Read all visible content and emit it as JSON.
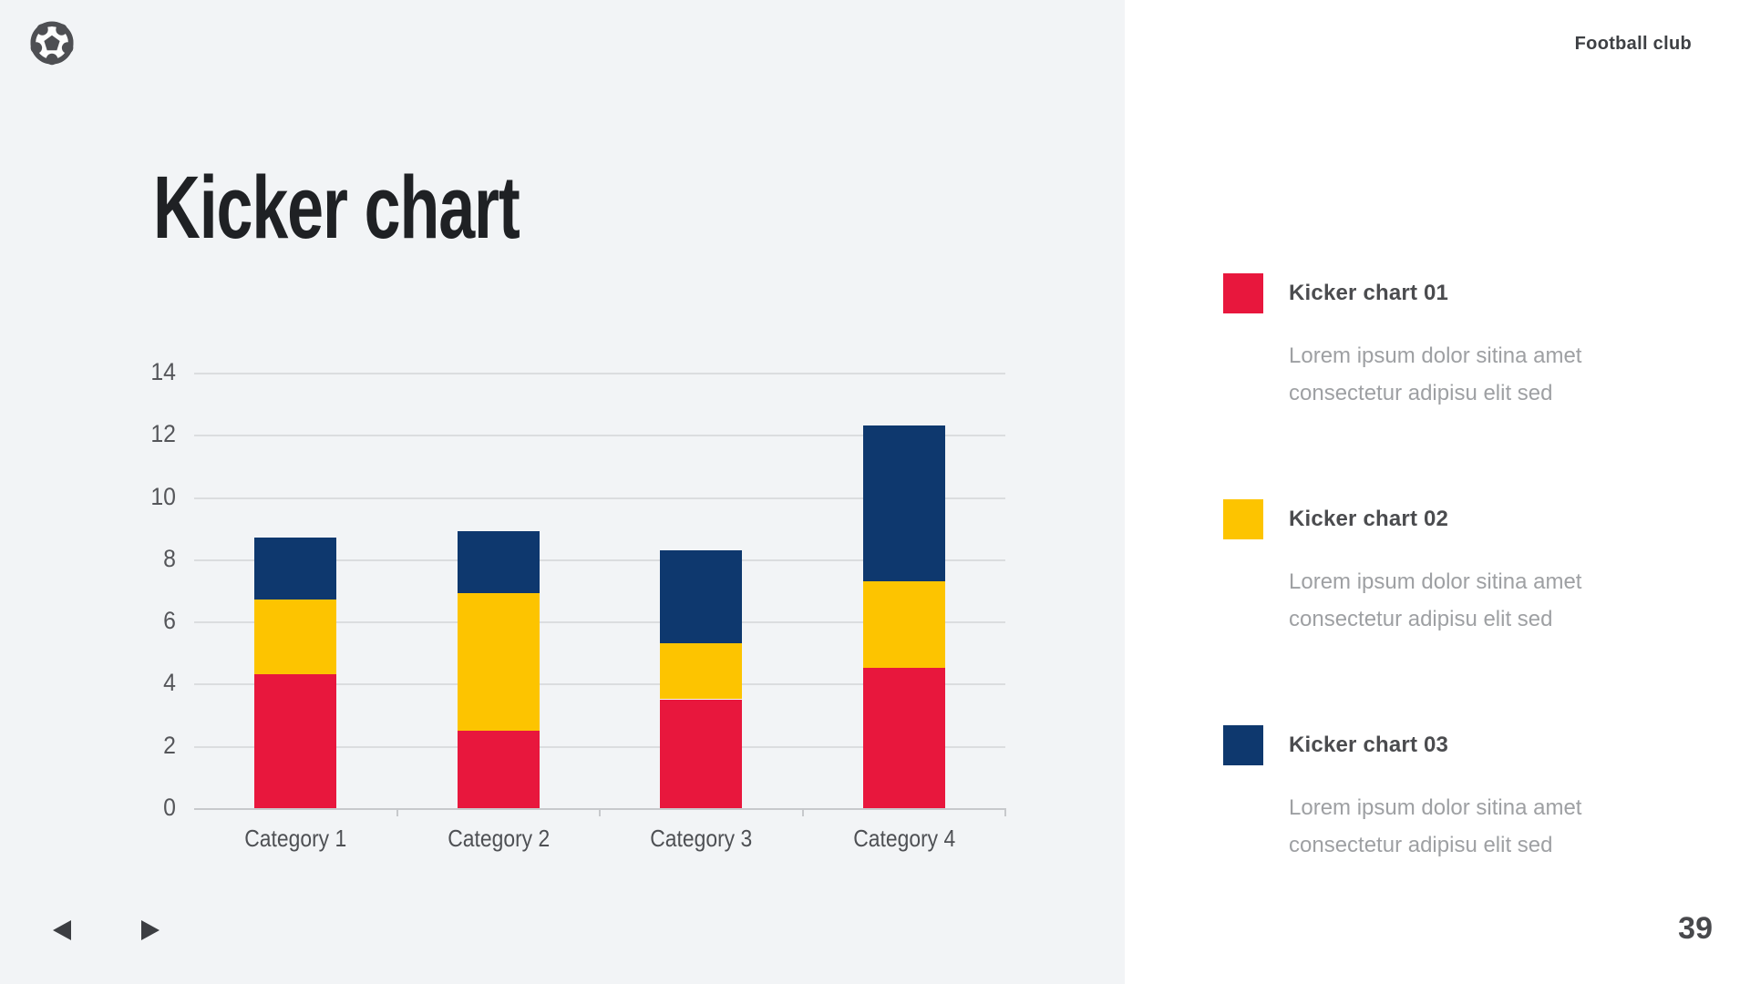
{
  "header": {
    "brand": "Football club",
    "logo_icon": "soccer-ball-icon"
  },
  "slide": {
    "title": "Kicker chart",
    "page_number": "39"
  },
  "chart_data": {
    "type": "bar",
    "stacked": true,
    "title": "Kicker chart",
    "categories": [
      "Category 1",
      "Category 2",
      "Category 3",
      "Category 4"
    ],
    "series": [
      {
        "name": "Kicker chart 01",
        "color": "#E8173D",
        "values": [
          4.3,
          2.5,
          3.5,
          4.5
        ]
      },
      {
        "name": "Kicker chart 02",
        "color": "#FDC400",
        "values": [
          2.4,
          4.4,
          1.8,
          2.8
        ]
      },
      {
        "name": "Kicker chart 03",
        "color": "#0E386E",
        "values": [
          2.0,
          2.0,
          3.0,
          5.0
        ]
      }
    ],
    "stack_totals": [
      8.7,
      8.9,
      8.3,
      12.3
    ],
    "xlabel": "",
    "ylabel": "",
    "ylim": [
      0,
      14
    ],
    "yticks": [
      0,
      2,
      4,
      6,
      8,
      10,
      12,
      14
    ],
    "grid": true,
    "legend_position": "right"
  },
  "legend": {
    "items": [
      {
        "title": "Kicker chart 01",
        "color": "#E8173D",
        "description": "Lorem ipsum dolor sitina amet consectetur adipisu elit sed"
      },
      {
        "title": "Kicker chart 02",
        "color": "#FDC400",
        "description": "Lorem ipsum dolor sitina amet consectetur adipisu elit sed"
      },
      {
        "title": "Kicker chart 03",
        "color": "#0E386E",
        "description": "Lorem ipsum dolor sitina amet consectetur adipisu elit sed"
      }
    ]
  },
  "footer": {
    "prev_icon": "triangle-left-icon",
    "next_icon": "triangle-right-icon"
  },
  "colors": {
    "background_left": "#F2F4F6",
    "background_right": "#FFFFFF",
    "title_text": "#1F2124",
    "axis_text": "#55565A",
    "legend_title_text": "#4B4C4F",
    "legend_body_text": "#9EA0A3"
  }
}
